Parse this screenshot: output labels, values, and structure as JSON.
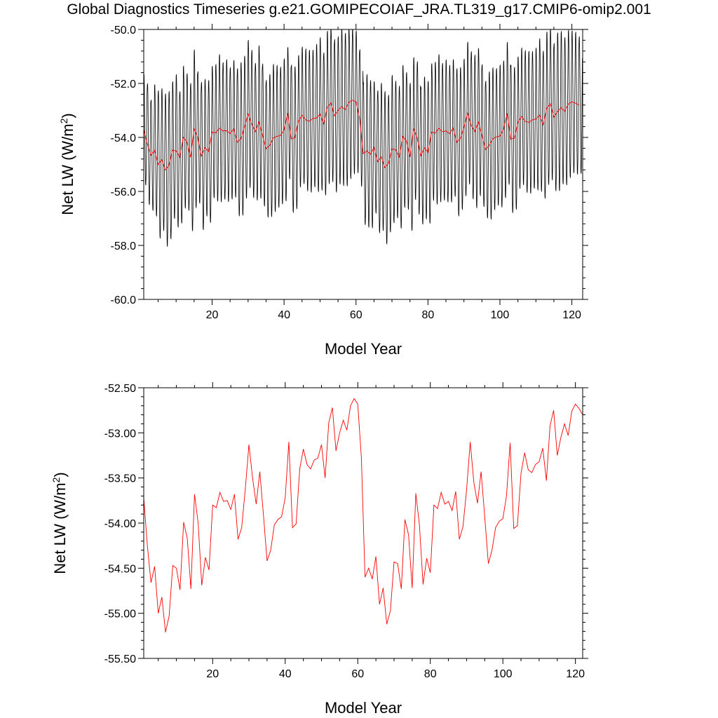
{
  "title": "Global Diagnostics Timeseries g.e21.GOMIPECOIAF_JRA.TL319_g17.CMIP6-omip2.001",
  "chart_data": [
    {
      "type": "line",
      "xlabel": "Model Year",
      "ylabel": "Net LW (W/m",
      "ylabel_sup": "2",
      "ylabel_tail": ")",
      "xlim": [
        1,
        123
      ],
      "ylim": [
        -60.0,
        -50.0
      ],
      "xticks": [
        20,
        40,
        60,
        80,
        100,
        120
      ],
      "xtick_labels": [
        "20",
        "40",
        "60",
        "80",
        "100",
        "120"
      ],
      "yticks": [
        -60.0,
        -58.0,
        -56.0,
        -54.0,
        -52.0,
        -50.0
      ],
      "ytick_labels": [
        "-60.0",
        "-58.0",
        "-56.0",
        "-54.0",
        "-52.0",
        "-50.0"
      ],
      "grid": false,
      "series": [
        {
          "kind": "monthly",
          "color": "#000000",
          "x_start": 1.0,
          "x_step": 0.08333,
          "amplitude": [
            2.1,
            2.3,
            2.1,
            2.5,
            2.8,
            2.7,
            2.9,
            2.8,
            2.6,
            2.9,
            2.5,
            2.7,
            2.6,
            2.8,
            3.0,
            2.5,
            2.8,
            2.6,
            2.7,
            2.5,
            2.6,
            2.8,
            2.6,
            2.7,
            2.5,
            2.6,
            2.8,
            2.9,
            2.7,
            2.8,
            2.8,
            2.6,
            2.9,
            2.7,
            2.6,
            2.7,
            2.8,
            2.7,
            2.6,
            2.7,
            2.5,
            2.8,
            2.7,
            2.5,
            2.6,
            2.7,
            2.7,
            2.6,
            2.8,
            2.9,
            2.7,
            2.9,
            3.0,
            2.9,
            2.8,
            3.0,
            2.9,
            2.9,
            2.8,
            2.7,
            2.6,
            2.7,
            2.9,
            2.8,
            2.5,
            2.7,
            2.8,
            2.9,
            2.6,
            2.8,
            2.6,
            2.7,
            2.7,
            2.6,
            2.8,
            2.7,
            2.9,
            2.6,
            2.7,
            2.7,
            2.6,
            2.7,
            2.8,
            2.6,
            2.7,
            2.6,
            2.6,
            2.8,
            2.7,
            2.6,
            2.7,
            2.8,
            2.9,
            2.8,
            2.7,
            2.6,
            2.8,
            2.7,
            2.6,
            2.7,
            2.6,
            2.7,
            2.8,
            2.7,
            2.5,
            2.6,
            2.7,
            2.7,
            2.6,
            2.7,
            2.9,
            2.8,
            2.9,
            2.9,
            2.8,
            3.0,
            2.9,
            2.8,
            2.8,
            2.7,
            2.7,
            2.6
          ],
          "phase": 0.2
        },
        {
          "kind": "annual",
          "color": "#ff0000",
          "x": [
            1,
            2,
            3,
            4,
            5,
            6,
            7,
            8,
            9,
            10,
            11,
            12,
            13,
            14,
            15,
            16,
            17,
            18,
            19,
            20,
            21,
            22,
            23,
            24,
            25,
            26,
            27,
            28,
            29,
            30,
            31,
            32,
            33,
            34,
            35,
            36,
            37,
            38,
            39,
            40,
            41,
            42,
            43,
            44,
            45,
            46,
            47,
            48,
            49,
            50,
            51,
            52,
            53,
            54,
            55,
            56,
            57,
            58,
            59,
            60,
            61,
            62,
            63,
            64,
            65,
            66,
            67,
            68,
            69,
            70,
            71,
            72,
            73,
            74,
            75,
            76,
            77,
            78,
            79,
            80,
            81,
            82,
            83,
            84,
            85,
            86,
            87,
            88,
            89,
            90,
            91,
            92,
            93,
            94,
            95,
            96,
            97,
            98,
            99,
            100,
            101,
            102,
            103,
            104,
            105,
            106,
            107,
            108,
            109,
            110,
            111,
            112,
            113,
            114,
            115,
            116,
            117,
            118,
            119,
            120,
            121,
            122
          ],
          "values": [
            -53.72,
            -54.25,
            -54.66,
            -54.48,
            -55.0,
            -54.82,
            -55.21,
            -55.03,
            -54.47,
            -54.5,
            -54.74,
            -53.99,
            -54.17,
            -54.73,
            -53.68,
            -54.0,
            -54.69,
            -54.38,
            -54.52,
            -53.8,
            -53.83,
            -53.66,
            -53.76,
            -53.75,
            -53.85,
            -53.68,
            -54.18,
            -54.05,
            -53.62,
            -53.13,
            -53.5,
            -53.79,
            -53.43,
            -53.91,
            -54.42,
            -54.3,
            -54.02,
            -53.96,
            -53.93,
            -53.72,
            -53.1,
            -54.05,
            -54.01,
            -53.4,
            -53.18,
            -53.35,
            -53.4,
            -53.3,
            -53.28,
            -53.13,
            -53.5,
            -52.89,
            -52.72,
            -53.2,
            -53.0,
            -52.86,
            -52.97,
            -52.7,
            -52.62,
            -52.68,
            -53.28,
            -54.6,
            -54.5,
            -54.62,
            -54.37,
            -54.9,
            -54.72,
            -55.12,
            -54.97,
            -54.43,
            -54.45,
            -54.73,
            -53.96,
            -54.13,
            -54.72,
            -53.67,
            -54.02,
            -54.68,
            -54.39,
            -54.55,
            -53.8,
            -53.84,
            -53.66,
            -53.79,
            -53.76,
            -53.86,
            -53.65,
            -54.18,
            -54.04,
            -53.63,
            -53.1,
            -53.55,
            -53.78,
            -53.43,
            -53.93,
            -54.45,
            -54.3,
            -54.05,
            -53.98,
            -53.95,
            -53.7,
            -53.11,
            -54.06,
            -54.03,
            -53.45,
            -53.22,
            -53.41,
            -53.44,
            -53.35,
            -53.32,
            -53.17,
            -53.53,
            -52.92,
            -52.75,
            -53.25,
            -53.05,
            -52.9,
            -53.03,
            -52.76,
            -52.68,
            -52.73,
            -52.8
          ]
        }
      ]
    },
    {
      "type": "line",
      "xlabel": "Model Year",
      "ylabel": "Net LW (W/m",
      "ylabel_sup": "2",
      "ylabel_tail": ")",
      "xlim": [
        1,
        122
      ],
      "ylim": [
        -55.5,
        -52.5
      ],
      "xticks": [
        20,
        40,
        60,
        80,
        100,
        120
      ],
      "xtick_labels": [
        "20",
        "40",
        "60",
        "80",
        "100",
        "120"
      ],
      "yticks": [
        -55.5,
        -55.0,
        -54.5,
        -54.0,
        -53.5,
        -53.0,
        -52.5
      ],
      "ytick_labels": [
        "-55.50",
        "-55.00",
        "-54.50",
        "-54.00",
        "-53.50",
        "-53.00",
        "-52.50"
      ],
      "grid": false,
      "series": [
        {
          "kind": "annual",
          "color": "#ff0000",
          "x": [
            1,
            2,
            3,
            4,
            5,
            6,
            7,
            8,
            9,
            10,
            11,
            12,
            13,
            14,
            15,
            16,
            17,
            18,
            19,
            20,
            21,
            22,
            23,
            24,
            25,
            26,
            27,
            28,
            29,
            30,
            31,
            32,
            33,
            34,
            35,
            36,
            37,
            38,
            39,
            40,
            41,
            42,
            43,
            44,
            45,
            46,
            47,
            48,
            49,
            50,
            51,
            52,
            53,
            54,
            55,
            56,
            57,
            58,
            59,
            60,
            61,
            62,
            63,
            64,
            65,
            66,
            67,
            68,
            69,
            70,
            71,
            72,
            73,
            74,
            75,
            76,
            77,
            78,
            79,
            80,
            81,
            82,
            83,
            84,
            85,
            86,
            87,
            88,
            89,
            90,
            91,
            92,
            93,
            94,
            95,
            96,
            97,
            98,
            99,
            100,
            101,
            102,
            103,
            104,
            105,
            106,
            107,
            108,
            109,
            110,
            111,
            112,
            113,
            114,
            115,
            116,
            117,
            118,
            119,
            120,
            121,
            122
          ],
          "values": [
            -53.72,
            -54.25,
            -54.66,
            -54.48,
            -55.0,
            -54.82,
            -55.21,
            -55.03,
            -54.47,
            -54.5,
            -54.74,
            -53.99,
            -54.17,
            -54.73,
            -53.68,
            -54.0,
            -54.69,
            -54.38,
            -54.52,
            -53.8,
            -53.83,
            -53.66,
            -53.76,
            -53.75,
            -53.85,
            -53.68,
            -54.18,
            -54.05,
            -53.62,
            -53.13,
            -53.5,
            -53.79,
            -53.43,
            -53.91,
            -54.42,
            -54.3,
            -54.02,
            -53.96,
            -53.93,
            -53.72,
            -53.1,
            -54.05,
            -54.01,
            -53.4,
            -53.18,
            -53.35,
            -53.4,
            -53.3,
            -53.28,
            -53.13,
            -53.5,
            -52.89,
            -52.72,
            -53.2,
            -53.0,
            -52.86,
            -52.97,
            -52.7,
            -52.62,
            -52.68,
            -53.28,
            -54.6,
            -54.5,
            -54.62,
            -54.37,
            -54.9,
            -54.72,
            -55.12,
            -54.97,
            -54.43,
            -54.45,
            -54.73,
            -53.96,
            -54.13,
            -54.72,
            -53.67,
            -54.02,
            -54.68,
            -54.39,
            -54.55,
            -53.8,
            -53.84,
            -53.66,
            -53.79,
            -53.76,
            -53.86,
            -53.65,
            -54.18,
            -54.04,
            -53.63,
            -53.1,
            -53.55,
            -53.78,
            -53.43,
            -53.93,
            -54.45,
            -54.3,
            -54.05,
            -53.98,
            -53.95,
            -53.7,
            -53.11,
            -54.06,
            -54.03,
            -53.45,
            -53.22,
            -53.41,
            -53.44,
            -53.35,
            -53.32,
            -53.17,
            -53.53,
            -52.92,
            -52.75,
            -53.25,
            -53.05,
            -52.9,
            -53.03,
            -52.76,
            -52.68,
            -52.73,
            -52.8
          ]
        }
      ]
    }
  ]
}
